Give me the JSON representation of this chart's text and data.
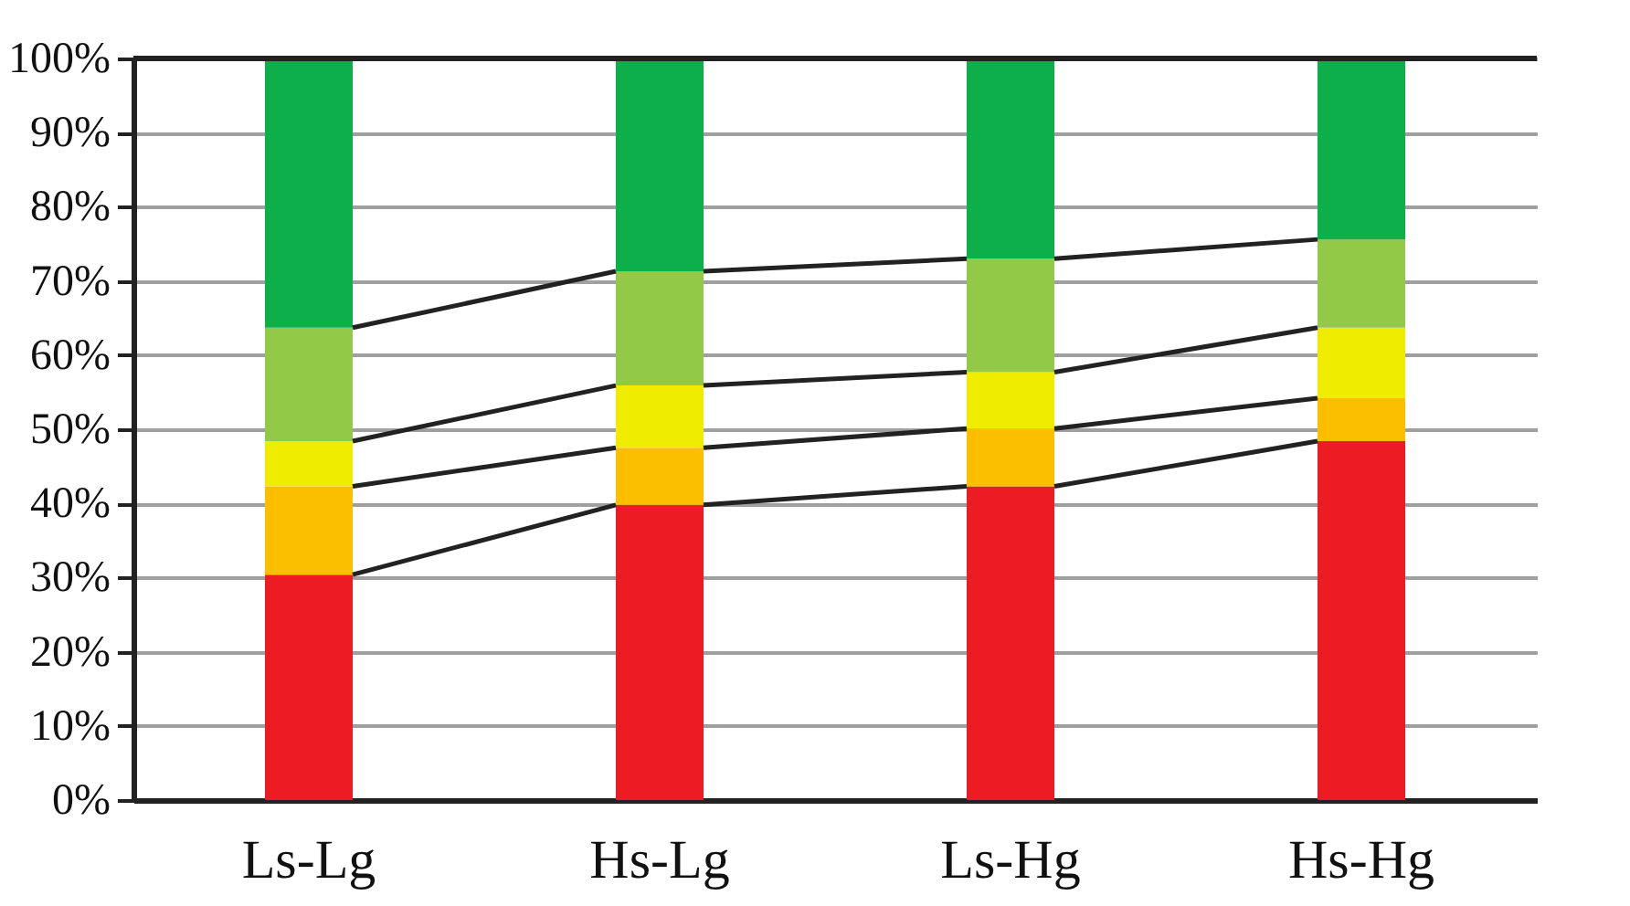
{
  "chart_data": {
    "type": "bar",
    "stacked": true,
    "categories": [
      "Ls-Lg",
      "Hs-Lg",
      "Ls-Hg",
      "Hs-Hg"
    ],
    "series": [
      {
        "color": "#ed1c24",
        "values": [
          30.4,
          39.8,
          42.3,
          48.4
        ]
      },
      {
        "color": "#fbbf00",
        "values": [
          11.9,
          7.7,
          7.8,
          5.8
        ]
      },
      {
        "color": "#f0ec00",
        "values": [
          6.1,
          8.4,
          7.6,
          9.5
        ]
      },
      {
        "color": "#92c947",
        "values": [
          15.3,
          15.4,
          15.3,
          11.9
        ]
      },
      {
        "color": "#0daf4b",
        "values": [
          36.3,
          28.7,
          27.0,
          24.4
        ]
      }
    ],
    "ylim": [
      0,
      100
    ],
    "yticks": [
      {
        "value": 0,
        "label": "0%"
      },
      {
        "value": 10,
        "label": "10%"
      },
      {
        "value": 20,
        "label": "20%"
      },
      {
        "value": 30,
        "label": "30%"
      },
      {
        "value": 40,
        "label": "40%"
      },
      {
        "value": 50,
        "label": "50%"
      },
      {
        "value": 60,
        "label": "60%"
      },
      {
        "value": 70,
        "label": "70%"
      },
      {
        "value": 80,
        "label": "80%"
      },
      {
        "value": 90,
        "label": "90%"
      },
      {
        "value": 100,
        "label": "100%"
      }
    ],
    "grid": "y"
  }
}
